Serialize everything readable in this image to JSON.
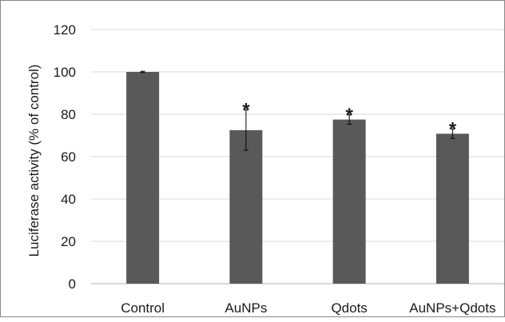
{
  "chart_data": {
    "type": "bar",
    "categories": [
      "Control",
      "AuNPs",
      "Qdots",
      "AuNPs+Qdots"
    ],
    "values": [
      100,
      72.5,
      77.5,
      70.8
    ],
    "error": [
      0.3,
      9.5,
      2.2,
      2.2
    ],
    "significance": [
      "",
      "*",
      "*",
      "*"
    ],
    "ylabel": "Luciferase activity (% of control)",
    "ylim": [
      0,
      120
    ],
    "yticks": [
      0,
      20,
      40,
      60,
      80,
      100,
      120
    ],
    "grid": true,
    "legend": "none",
    "colors": {
      "bar": "#595959",
      "grid": "#d9d9d9",
      "axis": "#bfbfbf",
      "text": "#1a1a1a"
    }
  }
}
